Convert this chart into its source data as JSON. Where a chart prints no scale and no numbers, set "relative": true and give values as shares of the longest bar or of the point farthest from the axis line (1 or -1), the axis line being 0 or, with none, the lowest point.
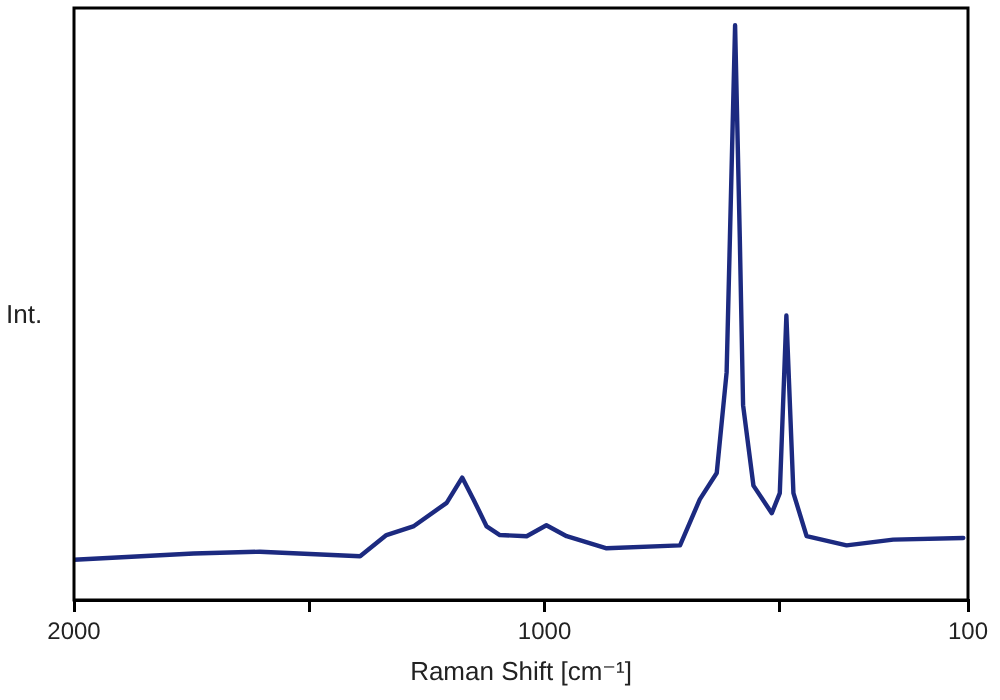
{
  "chart_data": {
    "type": "line",
    "xlabel": "Raman Shift [cm⁻¹]",
    "ylabel": "Int.",
    "relative": true,
    "xlim": [
      2000,
      100
    ],
    "xticks": [
      2000,
      {
        "value": 1500,
        "label": null
      },
      1000,
      {
        "value": 500,
        "label": null
      },
      100
    ],
    "grid": false,
    "legend": false,
    "marker": "none",
    "line_style": "solid",
    "series": [
      {
        "color": "#1c2a80",
        "x": [
          2000,
          1746,
          1605,
          1392,
          1336,
          1279,
          1208,
          1175,
          1151,
          1123,
          1095,
          1038,
          996,
          953,
          868,
          712,
          670,
          634,
          613,
          606,
          595,
          585,
          578,
          556,
          517,
          500,
          486,
          471,
          443,
          358,
          259,
          110
        ],
        "values": [
          0.07,
          0.081,
          0.084,
          0.076,
          0.113,
          0.128,
          0.169,
          0.213,
          0.175,
          0.128,
          0.113,
          0.111,
          0.13,
          0.111,
          0.09,
          0.095,
          0.175,
          0.221,
          0.396,
          0.63,
          1.0,
          0.63,
          0.339,
          0.199,
          0.151,
          0.186,
          0.495,
          0.186,
          0.111,
          0.095,
          0.105,
          0.108
        ]
      }
    ]
  }
}
